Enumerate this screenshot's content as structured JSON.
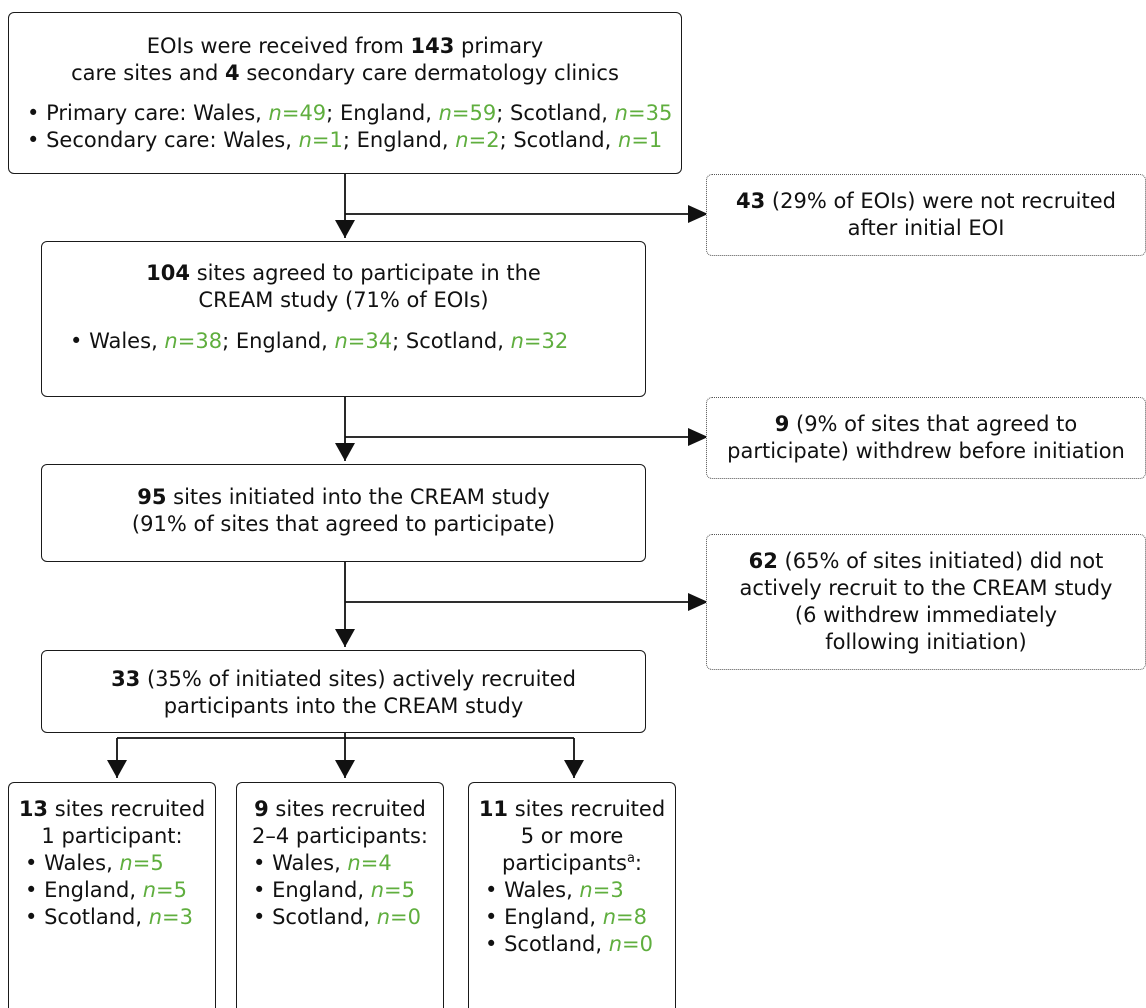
{
  "box1": {
    "line1_pre": "EOIs were received from ",
    "line1_num": "143",
    "line1_post": " primary",
    "line2_pre": "care sites and ",
    "line2_num": "4",
    "line2_post": " secondary care dermatology clinics",
    "primary_label": "Primary care: ",
    "secondary_label": "Secondary care: ",
    "primary": [
      {
        "region": "Wales",
        "value": "49"
      },
      {
        "region": "England",
        "value": "59"
      },
      {
        "region": "Scotland",
        "value": "35"
      }
    ],
    "secondary": [
      {
        "region": "Wales",
        "value": "1"
      },
      {
        "region": "England",
        "value": "2"
      },
      {
        "region": "Scotland",
        "value": "1"
      }
    ]
  },
  "side1": {
    "num": "43",
    "text1": " (29% of EOIs) were not recruited",
    "text2": "after initial EOI"
  },
  "box2": {
    "num": "104",
    "text1": " sites agreed to participate in the",
    "text2": "CREAM study (71% of EOIs)",
    "items": [
      {
        "region": "Wales",
        "value": "38"
      },
      {
        "region": "England",
        "value": "34"
      },
      {
        "region": "Scotland",
        "value": "32"
      }
    ]
  },
  "side2": {
    "num": "9",
    "text1": " (9% of sites that agreed to",
    "text2": "participate) withdrew before initiation"
  },
  "box3": {
    "num": "95",
    "text1": " sites initiated into the CREAM study",
    "text2": "(91% of sites that agreed to participate)"
  },
  "side3": {
    "num": "62",
    "text1": " (65% of sites initiated) did not",
    "text2": "actively recruit to the CREAM study",
    "text3": "(6 withdrew immediately",
    "text4": "following initiation)"
  },
  "box4": {
    "num": "33",
    "text1": " (35% of initiated sites) actively recruited",
    "text2": "participants into the CREAM study"
  },
  "out1": {
    "num": "13",
    "text1": " sites recruited",
    "text2": "1 participant:",
    "items": [
      {
        "region": "Wales",
        "value": "5"
      },
      {
        "region": "England",
        "value": "5"
      },
      {
        "region": "Scotland",
        "value": "3"
      }
    ]
  },
  "out2": {
    "num": "9",
    "text1": " sites recruited",
    "text2": "2–4 participants:",
    "items": [
      {
        "region": "Wales",
        "value": "4"
      },
      {
        "region": "England",
        "value": "5"
      },
      {
        "region": "Scotland",
        "value": "0"
      }
    ]
  },
  "out3": {
    "num": "11",
    "text1": " sites recruited",
    "text2": "5 or more",
    "text3": "participants",
    "sup": "a",
    "text3_post": ":",
    "items": [
      {
        "region": "Wales",
        "value": "3"
      },
      {
        "region": "England",
        "value": "8"
      },
      {
        "region": "Scotland",
        "value": "0"
      }
    ]
  },
  "n_symbol": "n",
  "eq_symbol": "="
}
